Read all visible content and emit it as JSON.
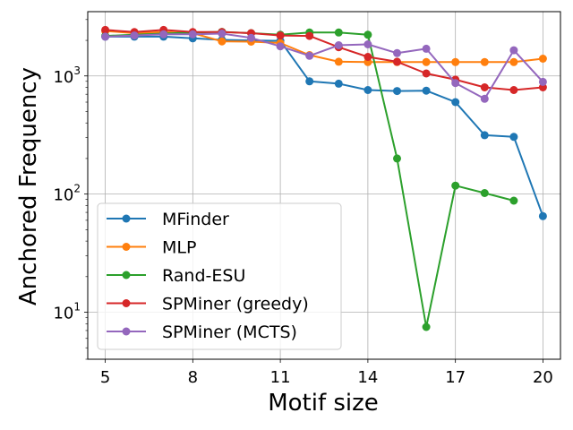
{
  "chart_data": {
    "type": "line",
    "title": "",
    "xlabel": "Motif size",
    "ylabel": "Anchored Frequency",
    "x": [
      5,
      6,
      7,
      8,
      9,
      10,
      11,
      12,
      13,
      14,
      15,
      16,
      17,
      18,
      19,
      20
    ],
    "xlim": [
      4.4,
      20.6
    ],
    "xticks": [
      5,
      8,
      11,
      14,
      17,
      20
    ],
    "yscale": "log",
    "ylim": [
      4.0,
      3500
    ],
    "yticks": [
      {
        "value": 10,
        "base": "10",
        "exp": "1"
      },
      {
        "value": 100,
        "base": "10",
        "exp": "2"
      },
      {
        "value": 1000,
        "base": "10",
        "exp": "3"
      }
    ],
    "grid": true,
    "legend_position": "lower-left",
    "series": [
      {
        "name": "MFinder",
        "color": "#1f77b4",
        "values": [
          2150,
          2150,
          2150,
          2080,
          2020,
          2000,
          1980,
          900,
          860,
          760,
          745,
          750,
          600,
          315,
          305,
          65
        ]
      },
      {
        "name": "MLP",
        "color": "#ff7f0e",
        "values": [
          2400,
          2300,
          2350,
          2300,
          1960,
          1950,
          1900,
          1500,
          1320,
          1310,
          1310,
          1310,
          1310,
          1310,
          1310,
          1400
        ]
      },
      {
        "name": "Rand-ESU",
        "color": "#2ca02c",
        "values": [
          2180,
          2230,
          2280,
          2330,
          2360,
          2300,
          2230,
          2330,
          2330,
          2230,
          200,
          7.5,
          118,
          102,
          88,
          null
        ]
      },
      {
        "name": "SPMiner (greedy)",
        "color": "#d62728",
        "values": [
          2450,
          2350,
          2450,
          2350,
          2350,
          2300,
          2200,
          2180,
          1750,
          1450,
          1320,
          1050,
          930,
          800,
          760,
          800
        ]
      },
      {
        "name": "SPMiner (MCTS)",
        "color": "#9467bd",
        "values": [
          2150,
          2200,
          2250,
          2250,
          2280,
          2100,
          1780,
          1480,
          1820,
          1850,
          1560,
          1700,
          870,
          640,
          1650,
          890
        ]
      }
    ]
  }
}
